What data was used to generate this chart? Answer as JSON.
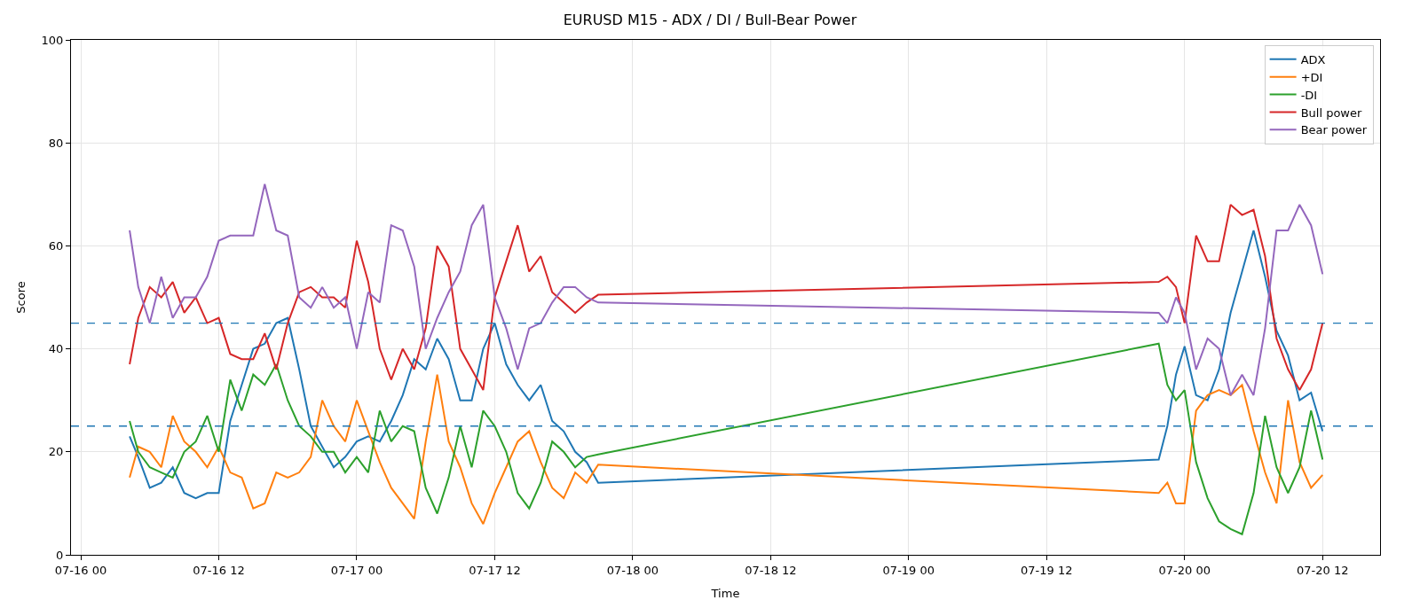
{
  "chart_data": {
    "type": "line",
    "title": "EURUSD M15 - ADX / DI / Bull-Bear Power",
    "xlabel": "Time",
    "ylabel": "Score",
    "x": [
      "--07-16T04:15",
      "--07-16T05:00",
      "--07-16T06:00",
      "--07-16T07:00",
      "--07-16T08:00",
      "--07-16T09:00",
      "--07-16T10:00",
      "--07-16T11:00",
      "--07-16T12:00",
      "--07-16T13:00",
      "--07-16T14:00",
      "--07-16T15:00",
      "--07-16T16:00",
      "--07-16T17:00",
      "--07-16T18:00",
      "--07-16T19:00",
      "--07-16T20:00",
      "--07-16T21:00",
      "--07-16T22:00",
      "--07-16T23:00",
      "--07-17T00:00",
      "--07-17T01:00",
      "--07-17T02:00",
      "--07-17T03:00",
      "--07-17T04:00",
      "--07-17T05:00",
      "--07-17T06:00",
      "--07-17T07:00",
      "--07-17T08:00",
      "--07-17T09:00",
      "--07-17T10:00",
      "--07-17T11:00",
      "--07-17T12:00",
      "--07-17T13:00",
      "--07-17T14:00",
      "--07-17T15:00",
      "--07-17T16:00",
      "--07-17T17:00",
      "--07-17T18:00",
      "--07-17T19:00",
      "--07-17T20:00",
      "--07-17T21:00",
      "--07-19T21:45",
      "--07-19T22:30",
      "--07-19T23:15",
      "--07-20T00:00",
      "--07-20T01:00",
      "--07-20T02:00",
      "--07-20T03:00",
      "--07-20T04:00",
      "--07-20T05:00",
      "--07-20T06:00",
      "--07-20T07:00",
      "--07-20T08:00",
      "--07-20T09:00",
      "--07-20T10:00",
      "--07-20T11:00",
      "--07-20T12:00"
    ],
    "series": [
      {
        "name": "ADX",
        "color": "#1f77b4",
        "values": [
          23,
          19,
          13,
          14,
          17,
          12,
          11,
          12,
          12,
          26,
          33,
          40,
          41,
          45,
          46,
          36,
          25,
          21,
          17,
          19,
          22,
          23,
          22,
          26,
          31,
          38,
          36,
          42,
          38,
          30,
          30,
          40,
          45,
          37,
          33,
          30,
          33,
          26,
          24,
          20,
          18,
          14,
          18.5,
          25,
          35,
          40.5,
          31,
          30,
          36,
          47,
          55,
          63,
          54,
          43.5,
          38.7,
          30,
          31.5,
          24
        ]
      },
      {
        "name": "+DI",
        "color": "#ff7f0e",
        "values": [
          15,
          21,
          20,
          17,
          27,
          22,
          20,
          17,
          21,
          16,
          15,
          9,
          10,
          16,
          15,
          16,
          19,
          30,
          25,
          22,
          30,
          24,
          18,
          13,
          10,
          7,
          22,
          35,
          22,
          17,
          10,
          6,
          12,
          17,
          22,
          24,
          18,
          13,
          11,
          16,
          14,
          17.5,
          12,
          14,
          10,
          10,
          28,
          31,
          32,
          31,
          33,
          24,
          16,
          10,
          30,
          18,
          13,
          15.5
        ]
      },
      {
        "name": "-DI",
        "color": "#2ca02c",
        "values": [
          26,
          20,
          17,
          16,
          15,
          20,
          22,
          27,
          20,
          34,
          28,
          35,
          33,
          37,
          30,
          25,
          23,
          20,
          20,
          16,
          19,
          16,
          28,
          22,
          25,
          24,
          13,
          8,
          15,
          25,
          17,
          28,
          25,
          20,
          12,
          9,
          14,
          22,
          20,
          17,
          19,
          19.5,
          41,
          33,
          30,
          32,
          18,
          11,
          6.5,
          5,
          4,
          12,
          27,
          17,
          12,
          17,
          28,
          18.5
        ]
      },
      {
        "name": "Bull power",
        "color": "#d62728",
        "values": [
          37,
          46,
          52,
          50,
          53,
          47,
          50,
          45,
          46,
          39,
          38,
          38,
          43,
          36,
          45,
          51,
          52,
          50,
          50,
          48,
          61,
          53,
          40,
          34,
          40,
          36,
          44,
          60,
          56,
          40,
          36,
          32,
          50,
          57,
          64,
          55,
          58,
          51,
          49,
          47,
          49,
          50.5,
          53,
          54,
          52,
          45,
          62,
          57,
          57,
          68,
          66,
          67,
          58,
          42,
          36,
          32,
          36,
          45
        ]
      },
      {
        "name": "Bear power",
        "color": "#9467bd",
        "values": [
          63,
          52,
          45,
          54,
          46,
          50,
          50,
          54,
          61,
          62,
          62,
          62,
          72,
          63,
          62,
          50,
          48,
          52,
          48,
          50,
          40,
          51,
          49,
          64,
          63,
          56,
          40,
          46,
          51,
          55,
          64,
          68,
          50,
          44,
          36,
          44,
          45,
          49,
          52,
          52,
          50,
          49,
          47,
          45,
          50,
          47,
          36,
          42,
          40,
          31,
          35,
          31,
          44,
          63,
          63,
          68,
          64,
          54.5
        ]
      }
    ],
    "xlim": [
      "--07-15T23:09",
      "--07-20T17:00"
    ],
    "xticks": [
      {
        "value": "--07-16T00:00",
        "label": "07-16 00"
      },
      {
        "value": "--07-16T12:00",
        "label": "07-16 12"
      },
      {
        "value": "--07-17T00:00",
        "label": "07-17 00"
      },
      {
        "value": "--07-17T12:00",
        "label": "07-17 12"
      },
      {
        "value": "--07-18T00:00",
        "label": "07-18 00"
      },
      {
        "value": "--07-18T12:00",
        "label": "07-18 12"
      },
      {
        "value": "--07-19T00:00",
        "label": "07-19 00"
      },
      {
        "value": "--07-19T12:00",
        "label": "07-19 12"
      },
      {
        "value": "--07-20T00:00",
        "label": "07-20 00"
      },
      {
        "value": "--07-20T12:00",
        "label": "07-20 12"
      }
    ],
    "ylim": [
      0,
      100
    ],
    "yticks": [
      0,
      20,
      40,
      60,
      80,
      100
    ],
    "ref_lines": [
      {
        "axis": "y",
        "value": 45,
        "color": "#1f77b4",
        "line_style": "dashed"
      },
      {
        "axis": "y",
        "value": 25,
        "color": "#1f77b4",
        "line_style": "dashed"
      }
    ],
    "grid": true,
    "legend": "top right",
    "marker": "none",
    "line_style": "solid"
  }
}
